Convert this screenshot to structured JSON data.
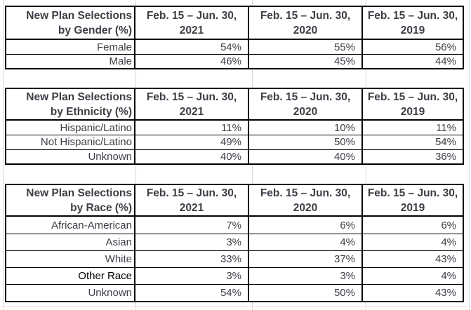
{
  "styles": {
    "background": "#ffffff",
    "table_border_color": "#000000",
    "text_color": "#3b3f46",
    "emphasis_text_color": "#000000",
    "gridline_color": "#d9d9d9"
  },
  "chart_data": [
    {
      "type": "table",
      "title": "New Plan Selections by Gender (%)",
      "header": {
        "row_label_lines": [
          "New Plan Selections",
          "by Gender (%)"
        ],
        "columns": [
          {
            "line1": "Feb. 15 – Jun. 30,",
            "line2": "2021"
          },
          {
            "line1": "Feb. 15 – Jun. 30,",
            "line2": "2020"
          },
          {
            "line1": "Feb. 15 – Jun. 30,",
            "line2": "2019"
          }
        ]
      },
      "rows": [
        {
          "label": "Female",
          "values": [
            "54%",
            "55%",
            "56%"
          ],
          "emphasis": false
        },
        {
          "label": "Male",
          "values": [
            "46%",
            "45%",
            "44%"
          ],
          "emphasis": false
        }
      ]
    },
    {
      "type": "table",
      "title": "New Plan Selections by Ethnicity (%)",
      "header": {
        "row_label_lines": [
          "New Plan Selections",
          "by Ethnicity (%)"
        ],
        "columns": [
          {
            "line1": "Feb. 15 – Jun. 30,",
            "line2": "2021"
          },
          {
            "line1": "Feb. 15 – Jun. 30,",
            "line2": "2020"
          },
          {
            "line1": "Feb. 15 – Jun. 30,",
            "line2": "2019"
          }
        ]
      },
      "rows": [
        {
          "label": "Hispanic/Latino",
          "values": [
            "11%",
            "10%",
            "11%"
          ],
          "emphasis": false
        },
        {
          "label": "Not Hispanic/Latino",
          "values": [
            "49%",
            "50%",
            "54%"
          ],
          "emphasis": false
        },
        {
          "label": "Unknown",
          "values": [
            "40%",
            "40%",
            "36%"
          ],
          "emphasis": false
        }
      ]
    },
    {
      "type": "table",
      "title": "New Plan Selections by Race (%)",
      "header": {
        "row_label_lines": [
          "New Plan Selections",
          "by Race (%)"
        ],
        "columns": [
          {
            "line1": "Feb. 15 – Jun. 30,",
            "line2": "2021"
          },
          {
            "line1": "Feb. 15 – Jun. 30,",
            "line2": "2020"
          },
          {
            "line1": "Feb. 15 – Jun. 30,",
            "line2": "2019"
          }
        ]
      },
      "rows": [
        {
          "label": "African-American",
          "values": [
            "7%",
            "6%",
            "6%"
          ],
          "emphasis": false
        },
        {
          "label": "Asian",
          "values": [
            "3%",
            "4%",
            "4%"
          ],
          "emphasis": false
        },
        {
          "label": "White",
          "values": [
            "33%",
            "37%",
            "43%"
          ],
          "emphasis": false
        },
        {
          "label": "Other Race",
          "values": [
            "3%",
            "3%",
            "4%"
          ],
          "emphasis": true
        },
        {
          "label": "Unknown",
          "values": [
            "54%",
            "50%",
            "43%"
          ],
          "emphasis": false
        }
      ]
    }
  ]
}
